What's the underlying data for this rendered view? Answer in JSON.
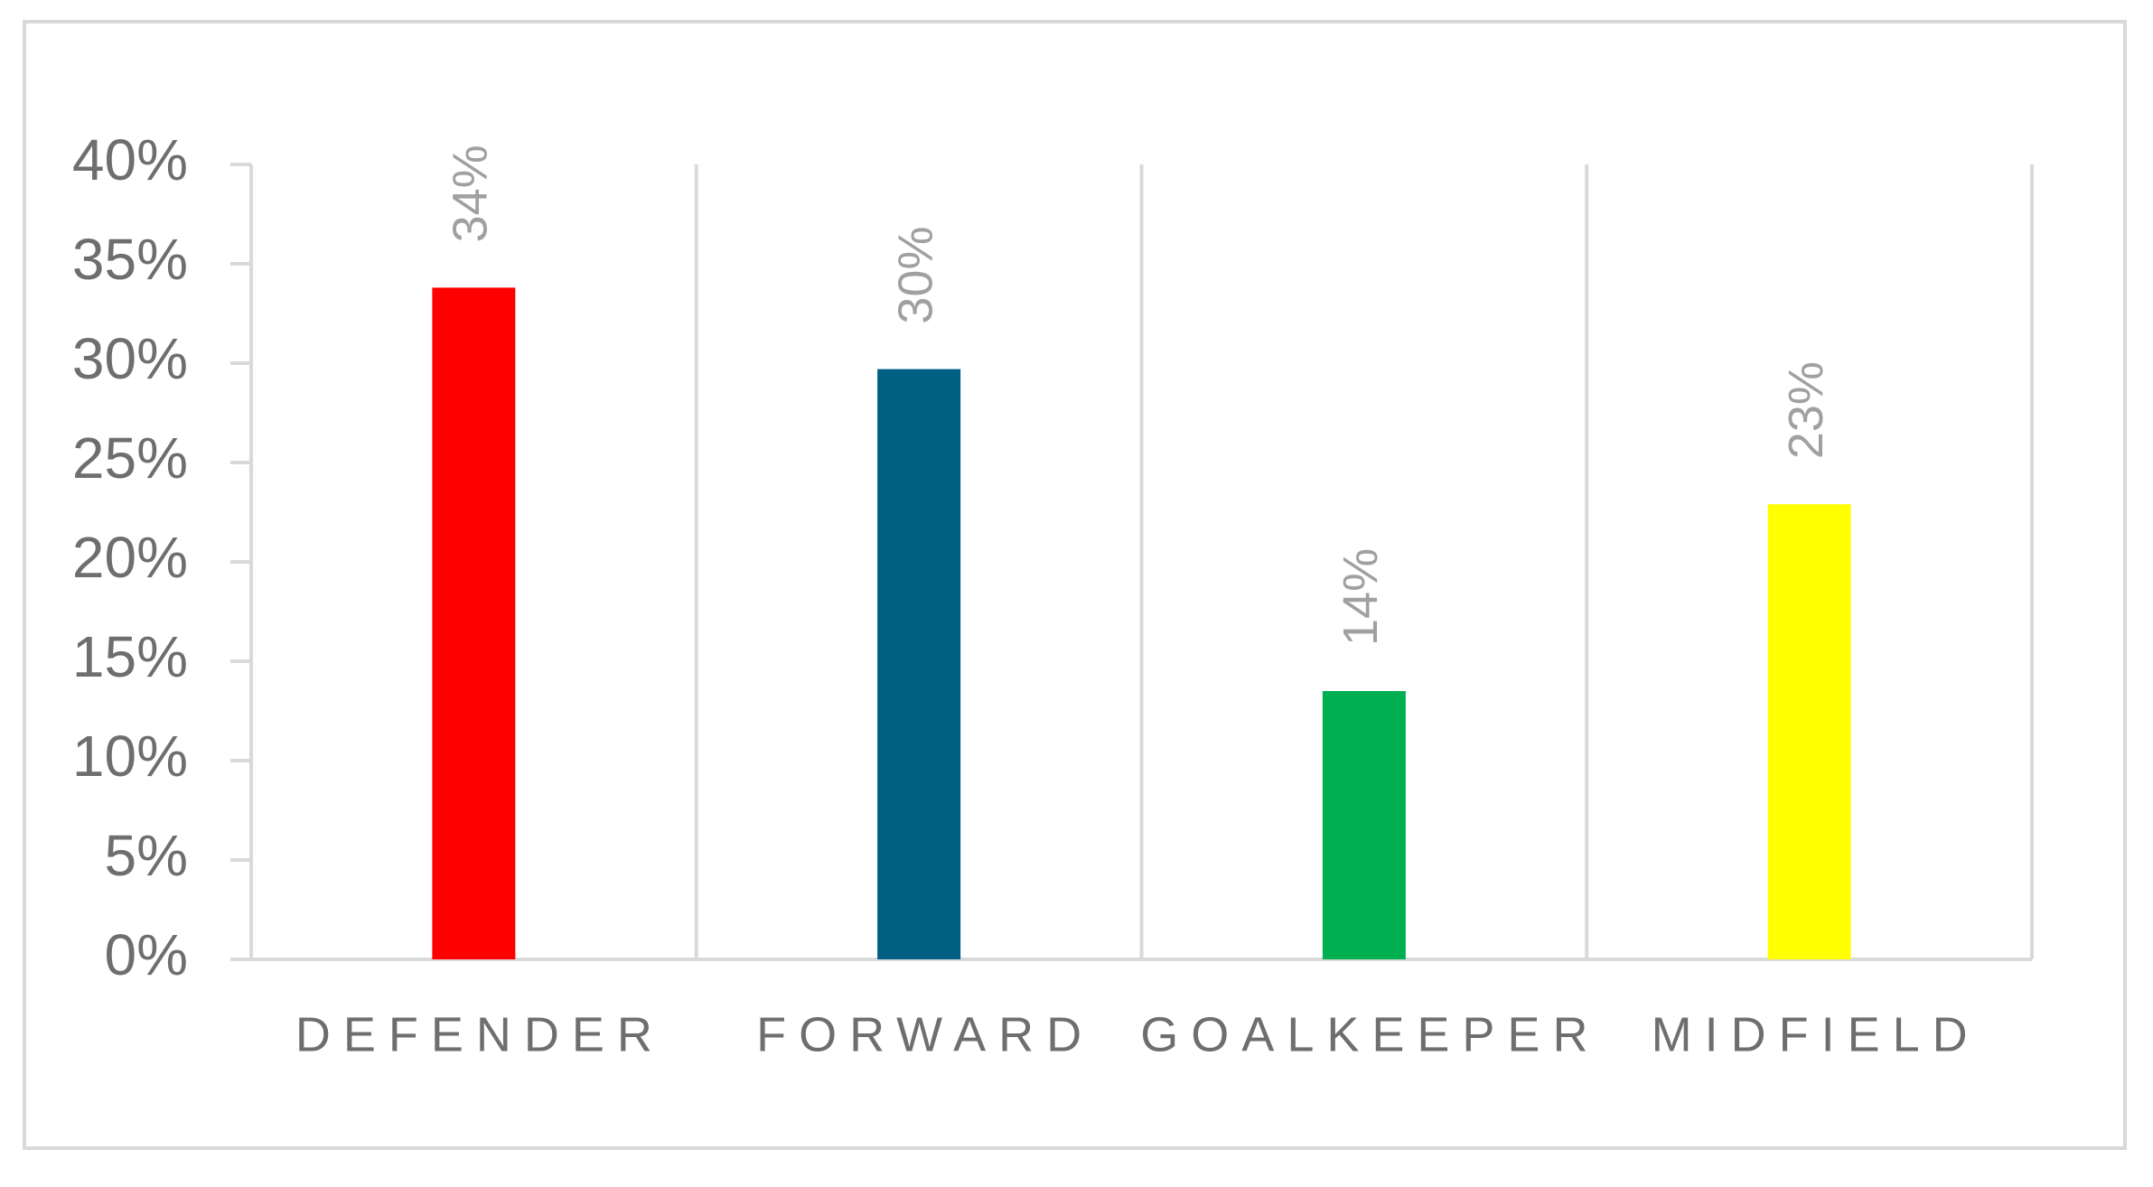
{
  "chart_data": {
    "type": "bar",
    "categories": [
      "DEFENDER",
      "FORWARD",
      "GOALKEEPER",
      "MIDFIELD"
    ],
    "values": [
      33.8,
      29.7,
      13.5,
      22.9
    ],
    "value_labels": [
      "34%",
      "30%",
      "14%",
      "23%"
    ],
    "colors": [
      "#ff0000",
      "#005f83",
      "#00b050",
      "#ffff00"
    ],
    "ylim": [
      0,
      40
    ],
    "yticks": [
      {
        "value": 0,
        "label": "0%"
      },
      {
        "value": 5,
        "label": "5%"
      },
      {
        "value": 10,
        "label": "10%"
      },
      {
        "value": 15,
        "label": "15%"
      },
      {
        "value": 20,
        "label": "20%"
      },
      {
        "value": 25,
        "label": "25%"
      },
      {
        "value": 30,
        "label": "30%"
      },
      {
        "value": 35,
        "label": "35%"
      },
      {
        "value": 40,
        "label": "40%"
      }
    ],
    "grid": true
  }
}
